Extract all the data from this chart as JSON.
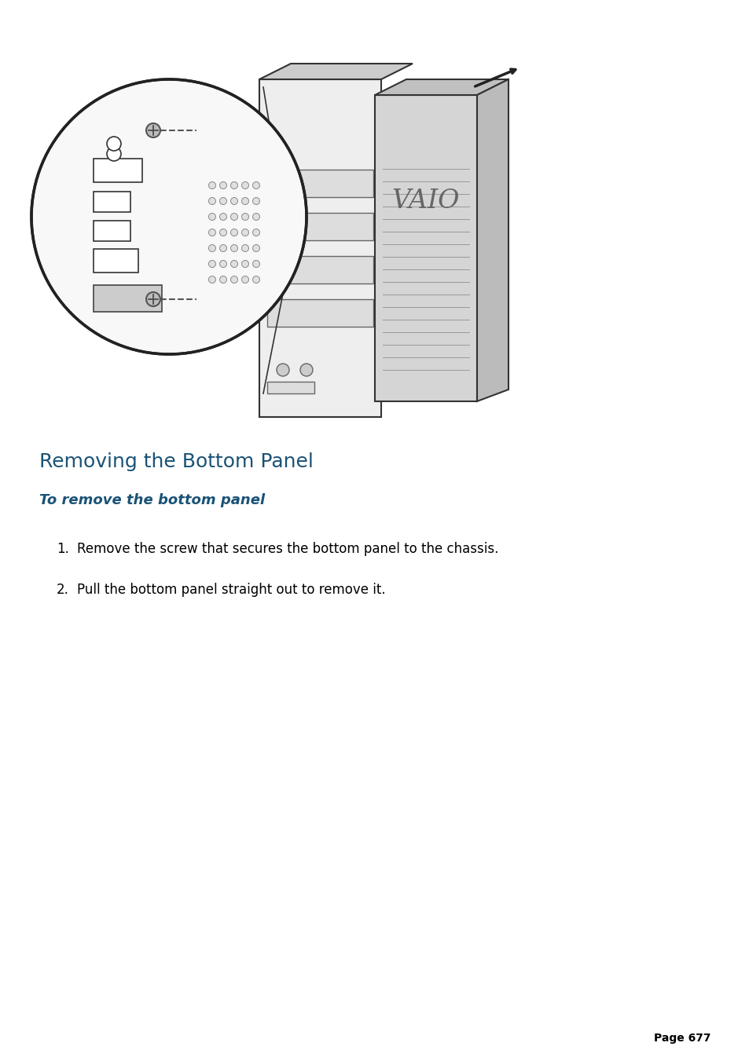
{
  "title": "Removing the Bottom Panel",
  "subtitle": "To remove the bottom panel",
  "steps": [
    "Remove the screw that secures the bottom panel to the chassis.",
    "Pull the bottom panel straight out to remove it."
  ],
  "page_number": "Page 677",
  "title_color": "#1a5276",
  "subtitle_color": "#1a5276",
  "text_color": "#000000",
  "background_color": "#ffffff",
  "title_fontsize": 18,
  "subtitle_fontsize": 13,
  "body_fontsize": 12,
  "page_fontsize": 10
}
